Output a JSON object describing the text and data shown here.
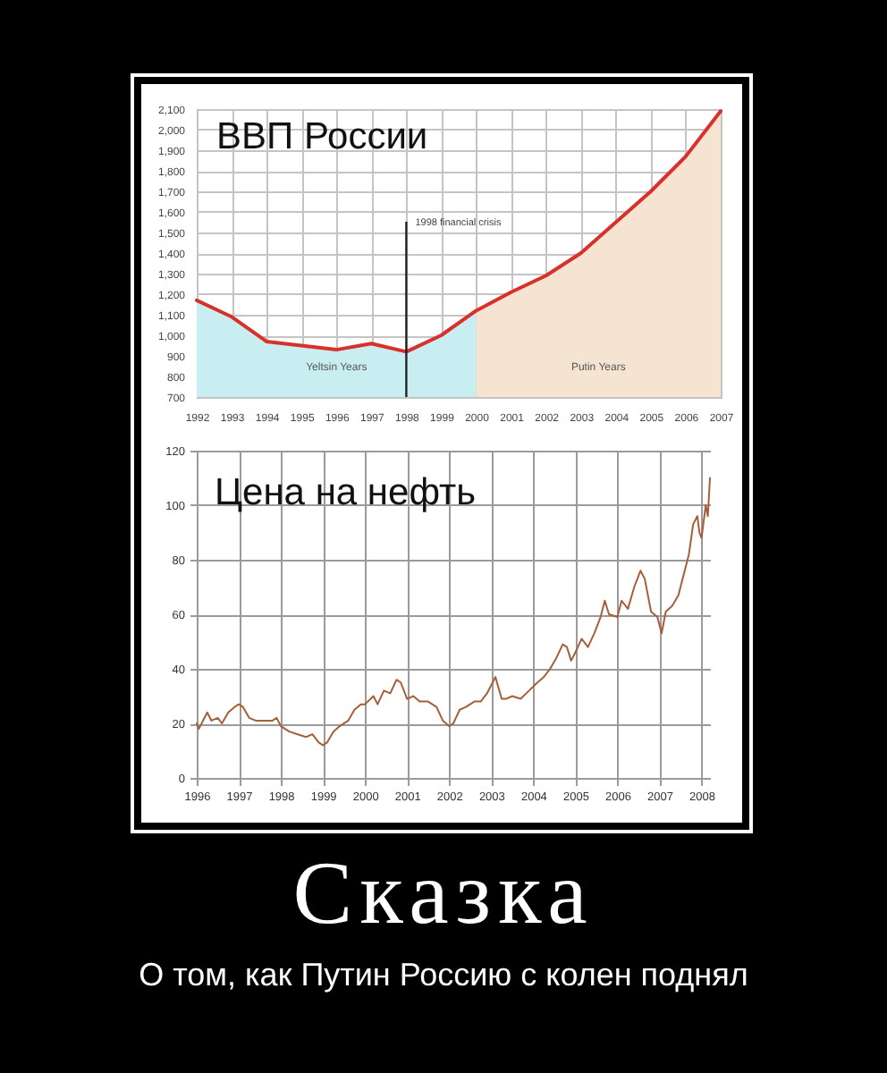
{
  "chart_data": [
    {
      "type": "line",
      "title": "ВВП России",
      "x": [
        1992,
        1993,
        1994,
        1995,
        1996,
        1997,
        1998,
        1999,
        2000,
        2001,
        2002,
        2003,
        2004,
        2005,
        2006,
        2007
      ],
      "series": [
        {
          "type": "area",
          "name": "Yeltsin Years",
          "color": "#c9eef2",
          "values": [
            1170,
            1090,
            970,
            950,
            930,
            960,
            920,
            1000,
            1120,
            null,
            null,
            null,
            null,
            null,
            null,
            null
          ]
        },
        {
          "type": "area",
          "name": "Putin Years",
          "color": "#f6e4d2",
          "values": [
            null,
            null,
            null,
            null,
            null,
            null,
            null,
            null,
            1120,
            1210,
            1290,
            1400,
            1550,
            1700,
            1870,
            2090
          ]
        },
        {
          "color": "#d8302a",
          "values": [
            1170,
            1090,
            970,
            950,
            930,
            960,
            920,
            1000,
            1120,
            1210,
            1290,
            1400,
            1550,
            1700,
            1870,
            2090
          ]
        }
      ],
      "xlim": [
        1992,
        2007
      ],
      "xticks": [
        1992,
        1993,
        1994,
        1995,
        1996,
        1997,
        1998,
        1999,
        2000,
        2001,
        2002,
        2003,
        2004,
        2005,
        2006,
        2007
      ],
      "ylim": [
        700,
        2100
      ],
      "yticks": [
        700,
        800,
        900,
        {
          "value": 1000,
          "label": "1,000"
        },
        {
          "value": 1100,
          "label": "1,100"
        },
        {
          "value": 1200,
          "label": "1,200"
        },
        {
          "value": 1300,
          "label": "1,300"
        },
        {
          "value": 1400,
          "label": "1,400"
        },
        {
          "value": 1500,
          "label": "1,500"
        },
        {
          "value": 1600,
          "label": "1,600"
        },
        {
          "value": 1700,
          "label": "1,700"
        },
        {
          "value": 1800,
          "label": "1,800"
        },
        {
          "value": 1900,
          "label": "1,900"
        },
        {
          "value": 2000,
          "label": "2,000"
        },
        {
          "value": 2100,
          "label": "2,100"
        }
      ],
      "grid": true,
      "ref_lines": [
        {
          "axis": "x",
          "value": 1998,
          "label": "1998 financial crisis"
        }
      ]
    },
    {
      "type": "line",
      "title": "Цена на нефть",
      "x": [
        1996.0,
        1996.05,
        1996.15,
        1996.25,
        1996.35,
        1996.5,
        1996.6,
        1996.75,
        1996.9,
        1997.0,
        1997.1,
        1997.25,
        1997.4,
        1997.6,
        1997.8,
        1997.9,
        1998.0,
        1998.2,
        1998.4,
        1998.6,
        1998.75,
        1998.9,
        1999.0,
        1999.1,
        1999.25,
        1999.4,
        1999.6,
        1999.75,
        1999.9,
        2000.0,
        2000.2,
        2000.3,
        2000.45,
        2000.6,
        2000.75,
        2000.85,
        2001.0,
        2001.15,
        2001.3,
        2001.5,
        2001.7,
        2001.85,
        2002.0,
        2002.1,
        2002.25,
        2002.4,
        2002.6,
        2002.75,
        2002.9,
        2003.1,
        2003.25,
        2003.35,
        2003.5,
        2003.7,
        2003.9,
        2004.1,
        2004.25,
        2004.4,
        2004.55,
        2004.7,
        2004.8,
        2004.9,
        2005.0,
        2005.15,
        2005.3,
        2005.45,
        2005.6,
        2005.7,
        2005.8,
        2006.0,
        2006.1,
        2006.25,
        2006.4,
        2006.55,
        2006.65,
        2006.8,
        2006.95,
        2007.05,
        2007.15,
        2007.3,
        2007.45,
        2007.6,
        2007.7,
        2007.8,
        2007.9,
        2007.95,
        2008.0,
        2008.1,
        2008.15,
        2008.2
      ],
      "values": [
        20,
        18,
        21,
        24,
        21,
        22,
        20,
        24,
        26,
        27,
        26,
        22,
        21,
        21,
        21,
        22,
        19,
        17,
        16,
        15,
        16,
        13,
        12,
        13,
        17,
        19,
        21,
        25,
        27,
        27,
        30,
        27,
        32,
        31,
        36,
        35,
        29,
        30,
        28,
        28,
        26,
        21,
        19,
        20,
        25,
        26,
        28,
        28,
        31,
        37,
        29,
        29,
        30,
        29,
        32,
        35,
        37,
        40,
        44,
        49,
        48,
        43,
        46,
        51,
        48,
        53,
        59,
        65,
        60,
        59,
        65,
        62,
        70,
        76,
        73,
        61,
        59,
        53,
        61,
        63,
        67,
        76,
        82,
        93,
        96,
        90,
        88,
        100,
        96,
        110
      ],
      "color": "#a65f3a",
      "xlim": [
        1996,
        2008.2
      ],
      "xticks": [
        1996,
        1997,
        1998,
        1999,
        2000,
        2001,
        2002,
        2003,
        2004,
        2005,
        2006,
        2007,
        2008
      ],
      "ylim": [
        0,
        120
      ],
      "yticks": [
        0,
        20,
        40,
        60,
        80,
        100,
        120
      ],
      "grid": true,
      "annotations": [
        "Сказка",
        "О том, как Путин Россию с колен поднял"
      ]
    }
  ]
}
